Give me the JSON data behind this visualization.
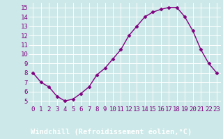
{
  "x": [
    0,
    1,
    2,
    3,
    4,
    5,
    6,
    7,
    8,
    9,
    10,
    11,
    12,
    13,
    14,
    15,
    16,
    17,
    18,
    19,
    20,
    21,
    22,
    23
  ],
  "y": [
    8,
    7,
    6.5,
    5.5,
    5,
    5.2,
    5.8,
    6.5,
    7.8,
    8.5,
    9.5,
    10.5,
    12,
    13,
    14,
    14.5,
    14.8,
    15,
    15,
    14,
    12.5,
    10.5,
    9,
    8
  ],
  "line_color": "#800080",
  "marker": "D",
  "markersize": 2.5,
  "linewidth": 1.0,
  "xlabel": "Windchill (Refroidissement éolien,°C)",
  "xlim": [
    -0.5,
    23.5
  ],
  "ylim": [
    4.5,
    15.5
  ],
  "xtick_labels": [
    "0",
    "1",
    "2",
    "3",
    "4",
    "5",
    "6",
    "7",
    "8",
    "9",
    "10",
    "11",
    "12",
    "13",
    "14",
    "15",
    "16",
    "17",
    "18",
    "19",
    "20",
    "21",
    "22",
    "23"
  ],
  "ytick_values": [
    5,
    6,
    7,
    8,
    9,
    10,
    11,
    12,
    13,
    14,
    15
  ],
  "background_color": "#cce8e8",
  "grid_color": "#ffffff",
  "xlabel_fontsize": 7.5,
  "tick_fontsize": 6.5,
  "line_purple": "#800080",
  "band_color": "#800080",
  "band_text_color": "#ffffff"
}
